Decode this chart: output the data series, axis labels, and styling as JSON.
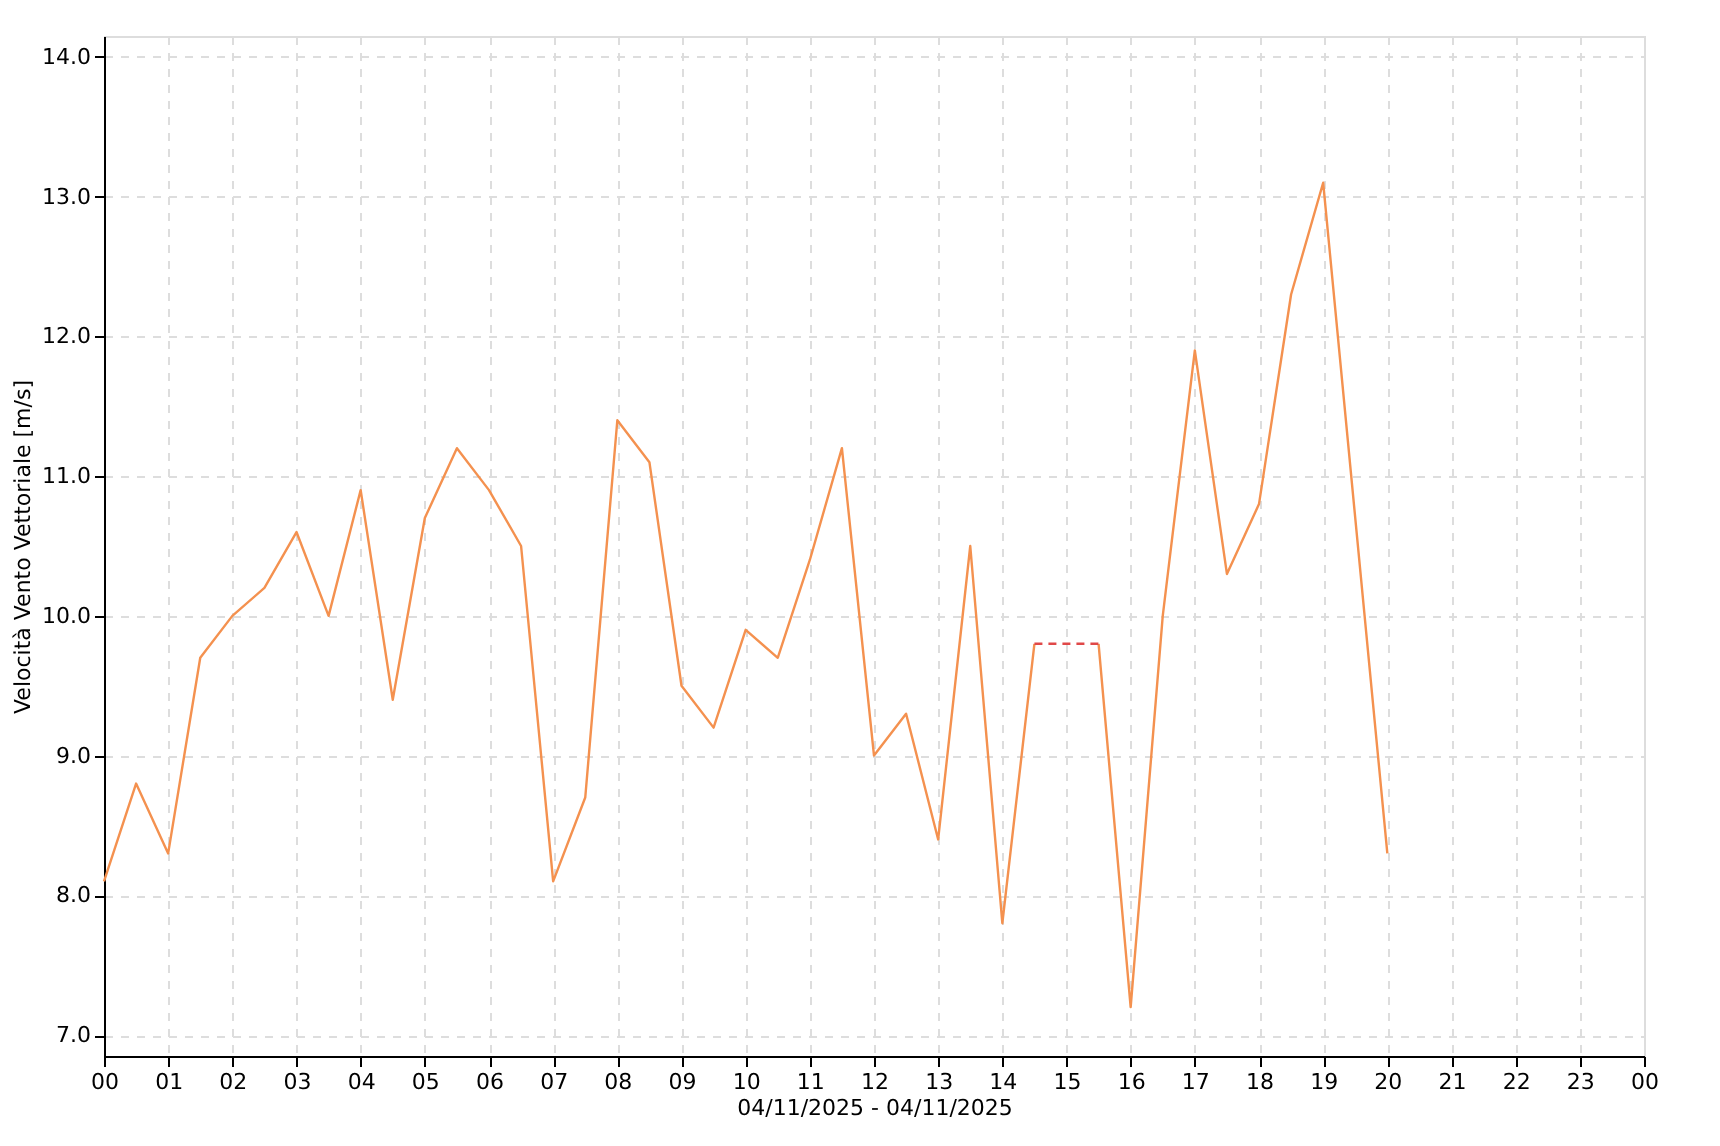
{
  "chart_data": {
    "type": "line",
    "xlabel": "04/11/2025 - 04/11/2025",
    "ylabel": "Velocità Vento Vettoriale [m/s]",
    "series": [
      {
        "color": "#f4914f",
        "line_style": "solid",
        "x": [
          0,
          0.5,
          1,
          1.5,
          2,
          2.5,
          3,
          3.5,
          4,
          4.5,
          5,
          5.5,
          6,
          6.5,
          7,
          7.5,
          8,
          8.5,
          9,
          9.5,
          10,
          10.5,
          11,
          11.5,
          12,
          12.5,
          13,
          13.5,
          14,
          14.5,
          15,
          15.5,
          16,
          16.5,
          17,
          17.5,
          18,
          18.5,
          19,
          20
        ],
        "values": [
          8.1,
          8.8,
          8.3,
          9.7,
          10.0,
          10.2,
          10.6,
          10.0,
          10.9,
          9.4,
          10.7,
          11.2,
          10.9,
          10.5,
          8.1,
          8.7,
          11.4,
          11.1,
          9.5,
          9.2,
          9.9,
          9.7,
          10.4,
          11.2,
          9.0,
          9.3,
          8.4,
          10.5,
          7.8,
          9.8,
          null,
          9.8,
          7.2,
          10.0,
          11.9,
          10.3,
          10.8,
          12.3,
          13.1,
          8.3
        ]
      },
      {
        "color": "#e04848",
        "line_style": "dashed",
        "x": [
          14.5,
          15.5
        ],
        "values": [
          9.8,
          9.8
        ]
      }
    ],
    "xlim": [
      0,
      24
    ],
    "xticks": [
      {
        "value": 0,
        "label": "00"
      },
      {
        "value": 1,
        "label": "01"
      },
      {
        "value": 2,
        "label": "02"
      },
      {
        "value": 3,
        "label": "03"
      },
      {
        "value": 4,
        "label": "04"
      },
      {
        "value": 5,
        "label": "05"
      },
      {
        "value": 6,
        "label": "06"
      },
      {
        "value": 7,
        "label": "07"
      },
      {
        "value": 8,
        "label": "08"
      },
      {
        "value": 9,
        "label": "09"
      },
      {
        "value": 10,
        "label": "10"
      },
      {
        "value": 11,
        "label": "11"
      },
      {
        "value": 12,
        "label": "12"
      },
      {
        "value": 13,
        "label": "13"
      },
      {
        "value": 14,
        "label": "14"
      },
      {
        "value": 15,
        "label": "15"
      },
      {
        "value": 16,
        "label": "16"
      },
      {
        "value": 17,
        "label": "17"
      },
      {
        "value": 18,
        "label": "18"
      },
      {
        "value": 19,
        "label": "19"
      },
      {
        "value": 20,
        "label": "20"
      },
      {
        "value": 21,
        "label": "21"
      },
      {
        "value": 22,
        "label": "22"
      },
      {
        "value": 23,
        "label": "23"
      },
      {
        "value": 24,
        "label": "00"
      }
    ],
    "ylim": [
      6.85,
      14.15
    ],
    "yticks": [
      {
        "value": 7,
        "label": "7.0"
      },
      {
        "value": 8,
        "label": "8.0"
      },
      {
        "value": 9,
        "label": "9.0"
      },
      {
        "value": 10,
        "label": "10.0"
      },
      {
        "value": 11,
        "label": "11.0"
      },
      {
        "value": 12,
        "label": "12.0"
      },
      {
        "value": 13,
        "label": "13.0"
      },
      {
        "value": 14,
        "label": "14.0"
      }
    ],
    "grid": true,
    "marker": "none"
  }
}
